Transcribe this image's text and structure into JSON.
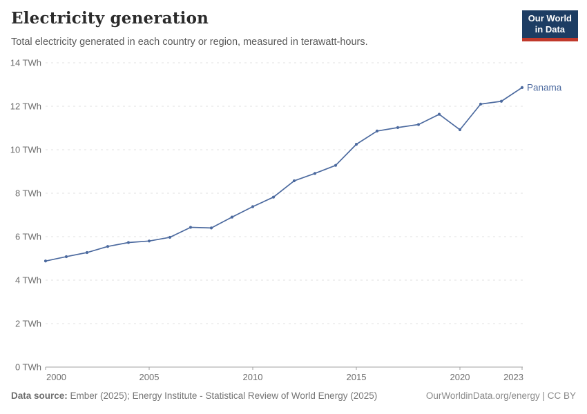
{
  "header": {
    "title": "Electricity generation",
    "subtitle": "Total electricity generated in each country or region, measured in terawatt-hours."
  },
  "logo": {
    "line1": "Our World",
    "line2": "in Data",
    "bg_color": "#1d3d63",
    "bar_color": "#c0392b"
  },
  "chart_data": {
    "type": "line",
    "title": "Electricity generation",
    "subtitle": "Total electricity generated in each country or region, measured in terawatt-hours.",
    "entity_label": "Panama",
    "xlabel": "",
    "ylabel": "",
    "xlim": [
      2000,
      2023
    ],
    "ylim": [
      0,
      14
    ],
    "x_ticks": [
      2000,
      2005,
      2010,
      2015,
      2020,
      2023
    ],
    "y_ticks": [
      0,
      2,
      4,
      6,
      8,
      10,
      12,
      14
    ],
    "y_tick_suffix": " TWh",
    "grid": "horizontal-dashed",
    "legend_position": "end-of-line-label",
    "series": [
      {
        "name": "Panama",
        "color": "#4c6a9f",
        "x": [
          2000,
          2001,
          2002,
          2003,
          2004,
          2005,
          2006,
          2007,
          2008,
          2009,
          2010,
          2011,
          2012,
          2013,
          2014,
          2015,
          2016,
          2017,
          2018,
          2019,
          2020,
          2021,
          2022,
          2023
        ],
        "values": [
          4.88,
          5.08,
          5.27,
          5.55,
          5.73,
          5.8,
          5.97,
          6.43,
          6.4,
          6.9,
          7.38,
          7.82,
          8.57,
          8.91,
          9.28,
          10.25,
          10.86,
          11.02,
          11.16,
          11.63,
          10.92,
          12.1,
          12.23,
          12.86
        ]
      }
    ],
    "axis_color": "#a1a1a1",
    "gridline_color": "#e0e0e0",
    "tick_label_color": "#6e6e6e"
  },
  "footer": {
    "source_label": "Data source:",
    "source_text": " Ember (2025); Energy Institute - Statistical Review of World Energy (2025)",
    "link": "OurWorldinData.org/energy",
    "license_suffix": " | CC BY"
  }
}
